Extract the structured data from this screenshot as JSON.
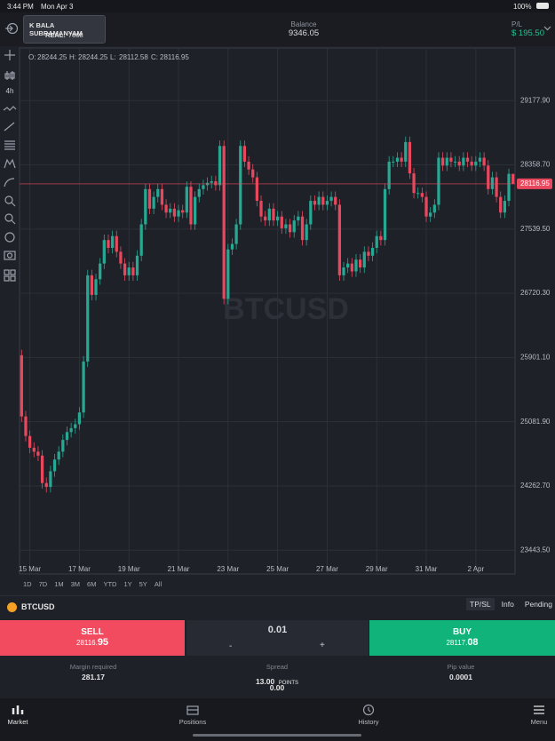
{
  "status_bar": {
    "time": "3:44 PM",
    "date": "Mon Apr 3",
    "battery": "100%"
  },
  "header": {
    "account_name": "K BALA SUBRAMANYAM",
    "account_type": "REAL:",
    "account_id": "7868",
    "balance_label": "Balance",
    "balance": "9346.05",
    "pl_label": "P/L",
    "pl": "$ 195.50"
  },
  "toolbar": {
    "interval": "4h"
  },
  "chart_data": {
    "type": "candlestick",
    "watermark": "BTCUSD",
    "header_labels": [
      "O:",
      "H:",
      "L:",
      "C:"
    ],
    "categories": [
      null,
      null,
      "15 Mar",
      null,
      null,
      null,
      null,
      null,
      null,
      null,
      null,
      null,
      null,
      null,
      "17 Mar",
      null,
      null,
      null,
      null,
      null,
      null,
      null,
      null,
      null,
      null,
      null,
      "19 Mar",
      null,
      null,
      null,
      null,
      null,
      null,
      null,
      null,
      null,
      null,
      null,
      "21 Mar",
      null,
      null,
      null,
      null,
      null,
      null,
      null,
      null,
      null,
      null,
      null,
      "23 Mar",
      null,
      null,
      null,
      null,
      null,
      null,
      null,
      null,
      null,
      null,
      null,
      "25 Mar",
      null,
      null,
      null,
      null,
      null,
      null,
      null,
      null,
      null,
      null,
      null,
      "27 Mar",
      null,
      null,
      null,
      null,
      null,
      null,
      null,
      null,
      null,
      null,
      null,
      "29 Mar",
      null,
      null,
      null,
      null,
      null,
      null,
      null,
      null,
      null,
      null,
      null,
      "31 Mar",
      null,
      null,
      null,
      null,
      null,
      null,
      null,
      null,
      null,
      null,
      null,
      "2 Apr",
      null,
      null,
      null,
      null,
      null,
      null,
      null,
      null,
      null
    ],
    "ohlc": [
      [
        25930,
        26000,
        25080,
        25150
      ],
      [
        25150,
        25220,
        24830,
        24900
      ],
      [
        24900,
        24970,
        24680,
        24750
      ],
      [
        24750,
        24820,
        24630,
        24700
      ],
      [
        24700,
        24770,
        24580,
        24650
      ],
      [
        24650,
        24720,
        24230,
        24300
      ],
      [
        24300,
        24370,
        24180,
        24250
      ],
      [
        24250,
        24520,
        24180,
        24450
      ],
      [
        24450,
        24670,
        24380,
        24600
      ],
      [
        24600,
        24770,
        24530,
        24700
      ],
      [
        24700,
        24920,
        24630,
        24850
      ],
      [
        24850,
        25020,
        24780,
        24950
      ],
      [
        24950,
        25070,
        24880,
        25000
      ],
      [
        25000,
        25120,
        24930,
        25050
      ],
      [
        25050,
        25270,
        24980,
        25200
      ],
      [
        25200,
        25920,
        25130,
        25850
      ],
      [
        25850,
        27020,
        25780,
        26950
      ],
      [
        26950,
        27020,
        26630,
        26700
      ],
      [
        26700,
        26970,
        26630,
        26900
      ],
      [
        26900,
        27170,
        26830,
        27100
      ],
      [
        27100,
        27470,
        27030,
        27400
      ],
      [
        27400,
        27470,
        27230,
        27300
      ],
      [
        27300,
        27520,
        27230,
        27450
      ],
      [
        27450,
        27520,
        27180,
        27250
      ],
      [
        27250,
        27320,
        27030,
        27100
      ],
      [
        27100,
        27170,
        26880,
        26950
      ],
      [
        26950,
        27120,
        26880,
        27050
      ],
      [
        27050,
        27120,
        26880,
        26950
      ],
      [
        26950,
        27270,
        26880,
        27200
      ],
      [
        27200,
        27670,
        27130,
        27600
      ],
      [
        27600,
        28120,
        27530,
        28050
      ],
      [
        28050,
        28120,
        27730,
        27800
      ],
      [
        27800,
        28020,
        27730,
        27950
      ],
      [
        27950,
        28120,
        27880,
        28050
      ],
      [
        28050,
        28120,
        27780,
        27850
      ],
      [
        27850,
        27920,
        27680,
        27750
      ],
      [
        27750,
        27870,
        27680,
        27800
      ],
      [
        27800,
        27870,
        27630,
        27700
      ],
      [
        27700,
        27850,
        27630,
        27780
      ],
      [
        27780,
        27850,
        27680,
        27750
      ],
      [
        27750,
        28150,
        27680,
        28080
      ],
      [
        28080,
        28150,
        27530,
        27600
      ],
      [
        27600,
        28020,
        27530,
        27950
      ],
      [
        27950,
        28120,
        27880,
        28050
      ],
      [
        28050,
        28170,
        27980,
        28100
      ],
      [
        28100,
        28200,
        28030,
        28130
      ],
      [
        28130,
        28220,
        28060,
        28150
      ],
      [
        28150,
        28220,
        28030,
        28100
      ],
      [
        28100,
        28670,
        28030,
        28600
      ],
      [
        28600,
        28670,
        26580,
        26650
      ],
      [
        26650,
        27350,
        26580,
        27280
      ],
      [
        27280,
        27420,
        27210,
        27350
      ],
      [
        27350,
        27670,
        27280,
        27600
      ],
      [
        27600,
        28670,
        27530,
        28600
      ],
      [
        28600,
        28670,
        28330,
        28400
      ],
      [
        28400,
        28470,
        28230,
        28300
      ],
      [
        28300,
        28370,
        28130,
        28200
      ],
      [
        28200,
        28270,
        27830,
        27900
      ],
      [
        27900,
        27970,
        27630,
        27700
      ],
      [
        27700,
        27770,
        27580,
        27650
      ],
      [
        27650,
        27870,
        27580,
        27800
      ],
      [
        27800,
        27870,
        27580,
        27650
      ],
      [
        27650,
        27770,
        27580,
        27700
      ],
      [
        27700,
        27770,
        27480,
        27550
      ],
      [
        27550,
        27670,
        27480,
        27600
      ],
      [
        27600,
        27670,
        27430,
        27500
      ],
      [
        27500,
        27720,
        27430,
        27650
      ],
      [
        27650,
        27770,
        27580,
        27700
      ],
      [
        27700,
        27770,
        27330,
        27400
      ],
      [
        27400,
        27670,
        27330,
        27600
      ],
      [
        27600,
        27970,
        27530,
        27900
      ],
      [
        27900,
        27970,
        27780,
        27850
      ],
      [
        27850,
        28020,
        27780,
        27950
      ],
      [
        27950,
        28020,
        27780,
        27850
      ],
      [
        27850,
        27970,
        27780,
        27900
      ],
      [
        27900,
        28020,
        27830,
        27950
      ],
      [
        27950,
        28020,
        27780,
        27850
      ],
      [
        27850,
        27920,
        26880,
        26950
      ],
      [
        26950,
        27120,
        26880,
        27050
      ],
      [
        27050,
        27170,
        26980,
        27100
      ],
      [
        27100,
        27170,
        26930,
        27000
      ],
      [
        27000,
        27220,
        26930,
        27150
      ],
      [
        27150,
        27220,
        26980,
        27050
      ],
      [
        27050,
        27320,
        26980,
        27250
      ],
      [
        27250,
        27320,
        27130,
        27200
      ],
      [
        27200,
        27370,
        27130,
        27300
      ],
      [
        27300,
        27520,
        27230,
        27450
      ],
      [
        27450,
        27520,
        27330,
        27400
      ],
      [
        27400,
        28120,
        27330,
        28050
      ],
      [
        28050,
        28470,
        27980,
        28400
      ],
      [
        28400,
        28470,
        28330,
        28400
      ],
      [
        28400,
        28520,
        28330,
        28450
      ],
      [
        28450,
        28520,
        28330,
        28400
      ],
      [
        28400,
        28720,
        28330,
        28650
      ],
      [
        28650,
        28720,
        28180,
        28250
      ],
      [
        28250,
        28320,
        27930,
        28000
      ],
      [
        28000,
        28070,
        27930,
        28000
      ],
      [
        28000,
        28070,
        27880,
        27950
      ],
      [
        27950,
        28020,
        27630,
        27700
      ],
      [
        27700,
        27820,
        27630,
        27750
      ],
      [
        27750,
        27920,
        27680,
        27850
      ],
      [
        27850,
        28520,
        27780,
        28450
      ],
      [
        28450,
        28520,
        28280,
        28350
      ],
      [
        28350,
        28520,
        28280,
        28450
      ],
      [
        28450,
        28520,
        28330,
        28400
      ],
      [
        28400,
        28470,
        28330,
        28400
      ],
      [
        28400,
        28470,
        28280,
        28350
      ],
      [
        28350,
        28520,
        28280,
        28450
      ],
      [
        28450,
        28520,
        28330,
        28400
      ],
      [
        28400,
        28470,
        28280,
        28350
      ],
      [
        28350,
        28470,
        28280,
        28400
      ],
      [
        28400,
        28520,
        28330,
        28450
      ],
      [
        28450,
        28520,
        28280,
        28350
      ],
      [
        28350,
        28420,
        27980,
        28050
      ],
      [
        28050,
        28270,
        27980,
        28200
      ],
      [
        28200,
        28270,
        27880,
        27950
      ],
      [
        27950,
        28020,
        27680,
        27750
      ],
      [
        27750,
        27970,
        27680,
        27900
      ],
      [
        27900,
        28310,
        27830,
        28244.25
      ],
      [
        28244.25,
        28244.25,
        28112.58,
        28116.95
      ]
    ],
    "ylim": [
      23140,
      29850
    ],
    "yticks": [
      {
        "value": 23443.5,
        "label": "23443.50"
      },
      {
        "value": 24262.7,
        "label": "24262.70"
      },
      {
        "value": 25081.9,
        "label": "25081.90"
      },
      {
        "value": 25901.1,
        "label": "25901.10"
      },
      {
        "value": 26720.3,
        "label": "26720.30"
      },
      {
        "value": 27539.5,
        "label": "27539.50"
      },
      {
        "value": 28358.7,
        "label": "28358.70"
      },
      {
        "value": 29177.9,
        "label": "29177.90"
      }
    ],
    "grid": true,
    "up_color": "#27a892",
    "down_color": "#e8485d",
    "last_price_color": "#e8485d"
  },
  "timeframes": [
    "1D",
    "7D",
    "1M",
    "3M",
    "6M",
    "YTD",
    "1Y",
    "5Y",
    "All"
  ],
  "instrument": {
    "symbol": "BTCUSD",
    "tabs": [
      "TP/SL",
      "Info",
      "Pending"
    ]
  },
  "trade": {
    "sell": {
      "label": "SELL",
      "price_main": "28116.",
      "price_pips": "95"
    },
    "quantity": "0.01",
    "minus": "-",
    "plus": "+",
    "buy": {
      "label": "BUY",
      "price_main": "28117.",
      "price_pips": "08"
    }
  },
  "stats": {
    "margin_label": "Margin required",
    "margin": "281.17",
    "spread_label": "Spread",
    "spread": "13.00",
    "spread_unit": "POINTS",
    "spread_extra": "0.00",
    "pip_label": "Pip value",
    "pip": "0.0001"
  },
  "nav": [
    "Market",
    "Positions",
    "History",
    "Menu"
  ]
}
